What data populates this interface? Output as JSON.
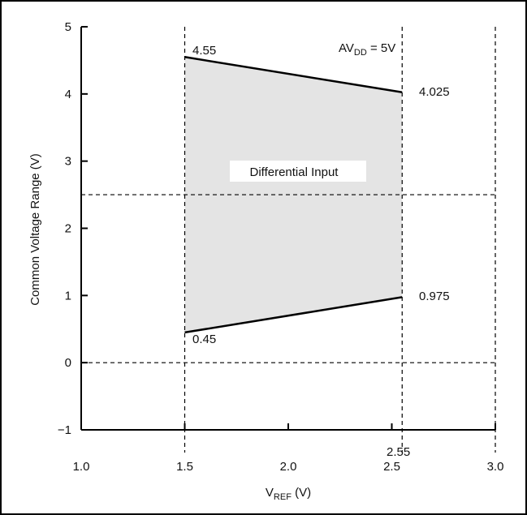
{
  "chart_data": {
    "type": "area",
    "title": "",
    "xlabel": {
      "main": "V",
      "sub": "REF",
      "unit": " (V)"
    },
    "ylabel": "Common Voltage Range (V)",
    "xlim": [
      1.0,
      3.0
    ],
    "ylim": [
      -1,
      5
    ],
    "x_ticks": [
      "1.0",
      "1.5",
      "2.0",
      "2.5",
      "3.0"
    ],
    "y_ticks": [
      "−1",
      "0",
      "1",
      "2",
      "3",
      "4",
      "5"
    ],
    "upper_boundary": {
      "x": [
        1.5,
        2.55
      ],
      "y": [
        4.55,
        4.025
      ]
    },
    "lower_boundary": {
      "x": [
        1.5,
        2.55
      ],
      "y": [
        0.45,
        0.975
      ]
    },
    "vertical_reference_lines": [
      1.5,
      2.55,
      3.0
    ],
    "horizontal_reference_lines": [
      0,
      2.5
    ],
    "region_label": "Differential Input",
    "point_labels": [
      "4.55",
      "4.025",
      "0.45",
      "0.975",
      "2.55"
    ],
    "condition_label": {
      "main": "AV",
      "sub": "DD",
      "suffix": " = 5V"
    },
    "fill_color": "#e4e4e4",
    "line_color": "#000000",
    "grid": false
  }
}
